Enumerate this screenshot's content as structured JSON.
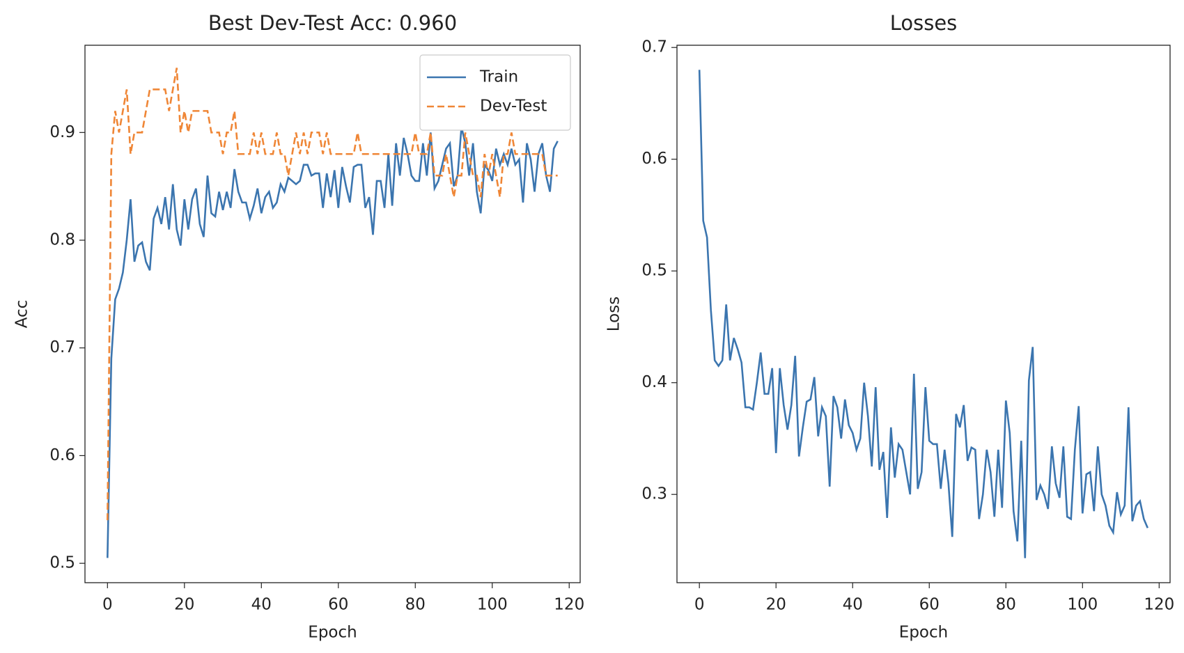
{
  "chart_data": [
    {
      "type": "line",
      "title": "Best Dev-Test Acc: 0.960",
      "x_label": "Epoch",
      "y_label": "Acc",
      "xlim": [
        -5.85,
        122.85
      ],
      "xticks": [
        0,
        20,
        40,
        60,
        80,
        100,
        120
      ],
      "ylim": [
        0.482,
        0.981
      ],
      "yticks": [
        0.5,
        0.6,
        0.7,
        0.8,
        0.9
      ],
      "legend": "upper right",
      "series": [
        {
          "name": "Train",
          "color": "#3b75af",
          "linestyle": "solid",
          "values": [
            0.505,
            0.69,
            0.745,
            0.755,
            0.77,
            0.8,
            0.838,
            0.78,
            0.795,
            0.798,
            0.78,
            0.772,
            0.82,
            0.83,
            0.815,
            0.84,
            0.81,
            0.852,
            0.81,
            0.795,
            0.838,
            0.81,
            0.838,
            0.848,
            0.815,
            0.803,
            0.86,
            0.825,
            0.822,
            0.845,
            0.828,
            0.845,
            0.83,
            0.866,
            0.845,
            0.835,
            0.835,
            0.82,
            0.832,
            0.848,
            0.825,
            0.84,
            0.845,
            0.83,
            0.835,
            0.852,
            0.845,
            0.858,
            0.855,
            0.852,
            0.855,
            0.87,
            0.87,
            0.86,
            0.862,
            0.862,
            0.83,
            0.862,
            0.84,
            0.865,
            0.83,
            0.868,
            0.85,
            0.835,
            0.868,
            0.87,
            0.87,
            0.83,
            0.84,
            0.805,
            0.855,
            0.855,
            0.83,
            0.88,
            0.832,
            0.89,
            0.86,
            0.895,
            0.88,
            0.86,
            0.855,
            0.855,
            0.89,
            0.86,
            0.9,
            0.848,
            0.855,
            0.87,
            0.885,
            0.89,
            0.85,
            0.86,
            0.905,
            0.89,
            0.86,
            0.89,
            0.845,
            0.825,
            0.87,
            0.865,
            0.855,
            0.885,
            0.87,
            0.88,
            0.87,
            0.885,
            0.87,
            0.875,
            0.835,
            0.89,
            0.875,
            0.845,
            0.88,
            0.89,
            0.86,
            0.845,
            0.885,
            0.892
          ]
        },
        {
          "name": "Dev-Test",
          "color": "#ef8636",
          "linestyle": "dashed",
          "values": [
            0.54,
            0.88,
            0.92,
            0.9,
            0.92,
            0.94,
            0.88,
            0.9,
            0.9,
            0.9,
            0.92,
            0.94,
            0.94,
            0.94,
            0.94,
            0.94,
            0.92,
            0.94,
            0.96,
            0.9,
            0.92,
            0.9,
            0.92,
            0.92,
            0.92,
            0.92,
            0.92,
            0.9,
            0.9,
            0.9,
            0.88,
            0.9,
            0.9,
            0.92,
            0.88,
            0.88,
            0.88,
            0.88,
            0.9,
            0.88,
            0.9,
            0.88,
            0.88,
            0.88,
            0.9,
            0.88,
            0.88,
            0.86,
            0.88,
            0.9,
            0.88,
            0.9,
            0.88,
            0.9,
            0.9,
            0.9,
            0.88,
            0.9,
            0.88,
            0.88,
            0.88,
            0.88,
            0.88,
            0.88,
            0.88,
            0.9,
            0.88,
            0.88,
            0.88,
            0.88,
            0.88,
            0.88,
            0.88,
            0.88,
            0.88,
            0.88,
            0.88,
            0.88,
            0.88,
            0.88,
            0.9,
            0.88,
            0.88,
            0.88,
            0.9,
            0.86,
            0.86,
            0.86,
            0.88,
            0.86,
            0.84,
            0.86,
            0.86,
            0.9,
            0.88,
            0.86,
            0.86,
            0.84,
            0.88,
            0.86,
            0.88,
            0.86,
            0.84,
            0.88,
            0.88,
            0.9,
            0.88,
            0.88,
            0.88,
            0.88,
            0.88,
            0.88,
            0.88,
            0.88,
            0.86,
            0.86,
            0.86,
            0.86
          ]
        }
      ]
    },
    {
      "type": "line",
      "title": "Losses",
      "x_label": "Epoch",
      "y_label": "Loss",
      "xlim": [
        -5.85,
        122.85
      ],
      "xticks": [
        0,
        20,
        40,
        60,
        80,
        100,
        120
      ],
      "ylim": [
        0.221,
        0.702
      ],
      "yticks": [
        0.3,
        0.4,
        0.5,
        0.6,
        0.7
      ],
      "series": [
        {
          "color": "#3b75af",
          "linestyle": "solid",
          "values": [
            0.68,
            0.545,
            0.53,
            0.465,
            0.42,
            0.415,
            0.42,
            0.47,
            0.42,
            0.44,
            0.43,
            0.418,
            0.378,
            0.378,
            0.376,
            0.4,
            0.427,
            0.39,
            0.39,
            0.413,
            0.337,
            0.413,
            0.38,
            0.358,
            0.38,
            0.424,
            0.334,
            0.36,
            0.383,
            0.385,
            0.405,
            0.352,
            0.378,
            0.37,
            0.307,
            0.388,
            0.378,
            0.35,
            0.385,
            0.362,
            0.355,
            0.34,
            0.35,
            0.4,
            0.37,
            0.325,
            0.396,
            0.322,
            0.338,
            0.279,
            0.36,
            0.315,
            0.345,
            0.34,
            0.32,
            0.3,
            0.408,
            0.305,
            0.32,
            0.396,
            0.348,
            0.345,
            0.345,
            0.305,
            0.34,
            0.31,
            0.262,
            0.372,
            0.36,
            0.38,
            0.33,
            0.342,
            0.34,
            0.278,
            0.3,
            0.34,
            0.32,
            0.28,
            0.34,
            0.288,
            0.384,
            0.355,
            0.285,
            0.258,
            0.348,
            0.243,
            0.402,
            0.432,
            0.295,
            0.308,
            0.3,
            0.287,
            0.343,
            0.31,
            0.297,
            0.343,
            0.28,
            0.278,
            0.34,
            0.379,
            0.283,
            0.318,
            0.32,
            0.285,
            0.343,
            0.3,
            0.29,
            0.272,
            0.266,
            0.302,
            0.282,
            0.29,
            0.378,
            0.276,
            0.29,
            0.294,
            0.278,
            0.27
          ]
        }
      ]
    }
  ]
}
